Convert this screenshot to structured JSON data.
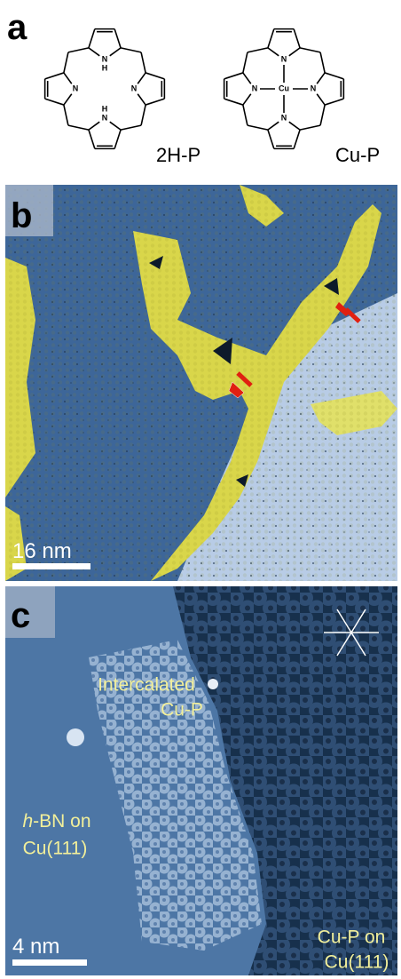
{
  "panels": {
    "a": {
      "label": "a",
      "molecules": [
        {
          "name": "2H-P",
          "atoms": [
            "N",
            "N",
            "N",
            "N",
            "H",
            "H"
          ]
        },
        {
          "name": "Cu-P",
          "atoms": [
            "N",
            "N",
            "N",
            "N",
            "Cu"
          ]
        }
      ]
    },
    "b": {
      "label": "b",
      "scale_bar": "16 nm"
    },
    "c": {
      "label": "c",
      "scale_bar": "4 nm",
      "annotations": [
        {
          "lines": [
            "Intercalated",
            "Cu-P"
          ]
        },
        {
          "italic": "h",
          "lines": [
            "-BN on",
            "Cu(111)"
          ]
        },
        {
          "lines": [
            "Cu-P on",
            "Cu(111)"
          ]
        }
      ]
    }
  }
}
